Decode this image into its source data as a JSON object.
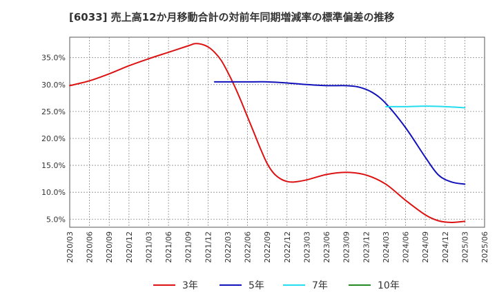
{
  "chart_data": {
    "type": "line",
    "title": "[6033]  売上高12か月移動合計の対前年同期増減率の標準偏差の推移",
    "xlabel": "",
    "ylabel": "",
    "x_ticks": [
      "2020/03",
      "2020/06",
      "2020/09",
      "2020/12",
      "2021/03",
      "2021/06",
      "2021/09",
      "2021/12",
      "2022/03",
      "2022/06",
      "2022/09",
      "2022/12",
      "2023/03",
      "2023/06",
      "2023/09",
      "2023/12",
      "2024/03",
      "2024/06",
      "2024/09",
      "2024/12",
      "2025/03",
      "2025/06"
    ],
    "y_ticks": [
      "5.0%",
      "10.0%",
      "15.0%",
      "20.0%",
      "25.0%",
      "30.0%",
      "35.0%"
    ],
    "ylim": [
      3.5,
      38.8
    ],
    "grid": true,
    "legend_position": "bottom",
    "series": [
      {
        "name": "3年",
        "color": "#dd1111",
        "points": [
          [
            "2020/03",
            29.8
          ],
          [
            "2020/06",
            30.7
          ],
          [
            "2020/09",
            32.0
          ],
          [
            "2020/12",
            33.5
          ],
          [
            "2021/03",
            34.8
          ],
          [
            "2021/06",
            36.0
          ],
          [
            "2021/09",
            37.2
          ],
          [
            "2021/10",
            37.6
          ],
          [
            "2021/11",
            37.5
          ],
          [
            "2021/12",
            37.0
          ],
          [
            "2022/01",
            36.0
          ],
          [
            "2022/02",
            34.5
          ],
          [
            "2022/03",
            32.3
          ],
          [
            "2022/04",
            29.8
          ],
          [
            "2022/05",
            27.0
          ],
          [
            "2022/06",
            24.0
          ],
          [
            "2022/07",
            21.0
          ],
          [
            "2022/08",
            18.0
          ],
          [
            "2022/09",
            15.3
          ],
          [
            "2022/10",
            13.5
          ],
          [
            "2022/11",
            12.5
          ],
          [
            "2022/12",
            12.0
          ],
          [
            "2023/01",
            11.9
          ],
          [
            "2023/03",
            12.3
          ],
          [
            "2023/06",
            13.3
          ],
          [
            "2023/09",
            13.7
          ],
          [
            "2023/12",
            13.2
          ],
          [
            "2024/03",
            11.5
          ],
          [
            "2024/06",
            8.5
          ],
          [
            "2024/09",
            5.8
          ],
          [
            "2024/11",
            4.7
          ],
          [
            "2025/01",
            4.4
          ],
          [
            "2025/03",
            4.6
          ]
        ]
      },
      {
        "name": "5年",
        "color": "#1111bb",
        "points": [
          [
            "2022/01",
            30.5
          ],
          [
            "2022/03",
            30.5
          ],
          [
            "2022/06",
            30.5
          ],
          [
            "2022/09",
            30.5
          ],
          [
            "2022/12",
            30.3
          ],
          [
            "2023/03",
            30.0
          ],
          [
            "2023/06",
            29.8
          ],
          [
            "2023/09",
            29.8
          ],
          [
            "2023/11",
            29.5
          ],
          [
            "2024/01",
            28.5
          ],
          [
            "2024/03",
            26.5
          ],
          [
            "2024/06",
            22.0
          ],
          [
            "2024/09",
            16.5
          ],
          [
            "2024/11",
            13.2
          ],
          [
            "2025/01",
            11.9
          ],
          [
            "2025/03",
            11.5
          ]
        ]
      },
      {
        "name": "7年",
        "color": "#22ddee",
        "points": [
          [
            "2024/03",
            25.9
          ],
          [
            "2024/06",
            25.9
          ],
          [
            "2024/09",
            26.0
          ],
          [
            "2024/12",
            25.9
          ],
          [
            "2025/03",
            25.7
          ]
        ]
      },
      {
        "name": "10年",
        "color": "#228822",
        "points": []
      }
    ]
  }
}
